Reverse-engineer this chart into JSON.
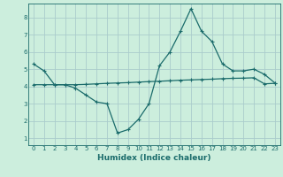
{
  "xlabel": "Humidex (Indice chaleur)",
  "background_color": "#cceedd",
  "grid_color": "#aacccc",
  "line_color": "#1a6b6b",
  "x_ticks": [
    0,
    1,
    2,
    3,
    4,
    5,
    6,
    7,
    8,
    9,
    10,
    11,
    12,
    13,
    14,
    15,
    16,
    17,
    18,
    19,
    20,
    21,
    22,
    23
  ],
  "y_ticks": [
    1,
    2,
    3,
    4,
    5,
    6,
    7,
    8
  ],
  "ylim": [
    0.6,
    8.8
  ],
  "xlim": [
    -0.5,
    23.5
  ],
  "line1_x": [
    0,
    1,
    2,
    3,
    4,
    5,
    6,
    7,
    8,
    9,
    10,
    11,
    12,
    13,
    14,
    15,
    16,
    17,
    18,
    19,
    20,
    21,
    22,
    23
  ],
  "line1_y": [
    5.3,
    4.9,
    4.1,
    4.1,
    3.9,
    3.5,
    3.1,
    3.0,
    1.3,
    1.5,
    2.1,
    3.0,
    5.2,
    6.0,
    7.2,
    8.5,
    7.2,
    6.6,
    5.3,
    4.9,
    4.9,
    5.0,
    4.7,
    4.2
  ],
  "line2_x": [
    0,
    1,
    2,
    3,
    4,
    5,
    6,
    7,
    8,
    9,
    10,
    11,
    12,
    13,
    14,
    15,
    16,
    17,
    18,
    19,
    20,
    21,
    22,
    23
  ],
  "line2_y": [
    4.1,
    4.1,
    4.1,
    4.1,
    4.1,
    4.12,
    4.15,
    4.18,
    4.2,
    4.22,
    4.25,
    4.28,
    4.3,
    4.33,
    4.36,
    4.38,
    4.4,
    4.42,
    4.45,
    4.47,
    4.48,
    4.5,
    4.15,
    4.18
  ],
  "tick_fontsize": 5,
  "xlabel_fontsize": 6.5,
  "xlabel_fontweight": "bold"
}
